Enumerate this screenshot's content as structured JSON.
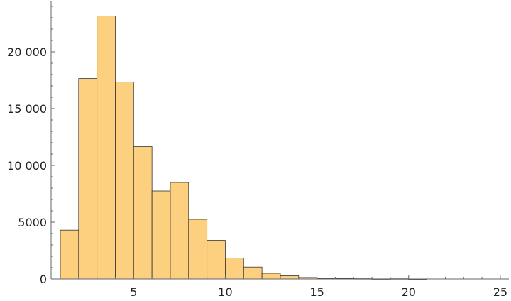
{
  "chart_data": {
    "type": "bar",
    "title": "",
    "xlabel": "",
    "ylabel": "",
    "bin_width": 1,
    "bins": [
      {
        "x0": 1,
        "x1": 2,
        "count": 4300
      },
      {
        "x0": 2,
        "x1": 3,
        "count": 17650
      },
      {
        "x0": 3,
        "x1": 4,
        "count": 23150
      },
      {
        "x0": 4,
        "x1": 5,
        "count": 17350
      },
      {
        "x0": 5,
        "x1": 6,
        "count": 11650
      },
      {
        "x0": 6,
        "x1": 7,
        "count": 7750
      },
      {
        "x0": 7,
        "x1": 8,
        "count": 8500
      },
      {
        "x0": 8,
        "x1": 9,
        "count": 5250
      },
      {
        "x0": 9,
        "x1": 10,
        "count": 3400
      },
      {
        "x0": 10,
        "x1": 11,
        "count": 1850
      },
      {
        "x0": 11,
        "x1": 12,
        "count": 1050
      },
      {
        "x0": 12,
        "x1": 13,
        "count": 500
      },
      {
        "x0": 13,
        "x1": 14,
        "count": 280
      },
      {
        "x0": 14,
        "x1": 15,
        "count": 130
      },
      {
        "x0": 15,
        "x1": 16,
        "count": 60
      },
      {
        "x0": 16,
        "x1": 17,
        "count": 40
      },
      {
        "x0": 17,
        "x1": 18,
        "count": 25
      },
      {
        "x0": 18,
        "x1": 19,
        "count": 10
      },
      {
        "x0": 19,
        "x1": 20,
        "count": 20
      },
      {
        "x0": 20,
        "x1": 21,
        "count": 5
      }
    ],
    "xlim": [
      0.5,
      25.5
    ],
    "ylim": [
      0,
      24500
    ],
    "x_ticks": [
      {
        "value": 5,
        "label": "5"
      },
      {
        "value": 10,
        "label": "10"
      },
      {
        "value": 15,
        "label": "15"
      },
      {
        "value": 20,
        "label": "20"
      },
      {
        "value": 25,
        "label": "25"
      }
    ],
    "y_ticks": [
      {
        "value": 0,
        "label": "0"
      },
      {
        "value": 5000,
        "label": "5000"
      },
      {
        "value": 10000,
        "label": "10 000"
      },
      {
        "value": 15000,
        "label": "15 000"
      },
      {
        "value": 20000,
        "label": "20 000"
      }
    ],
    "bar_color": "#fdd07f",
    "edge_color": "#333333",
    "grid": false,
    "legend": "none"
  }
}
